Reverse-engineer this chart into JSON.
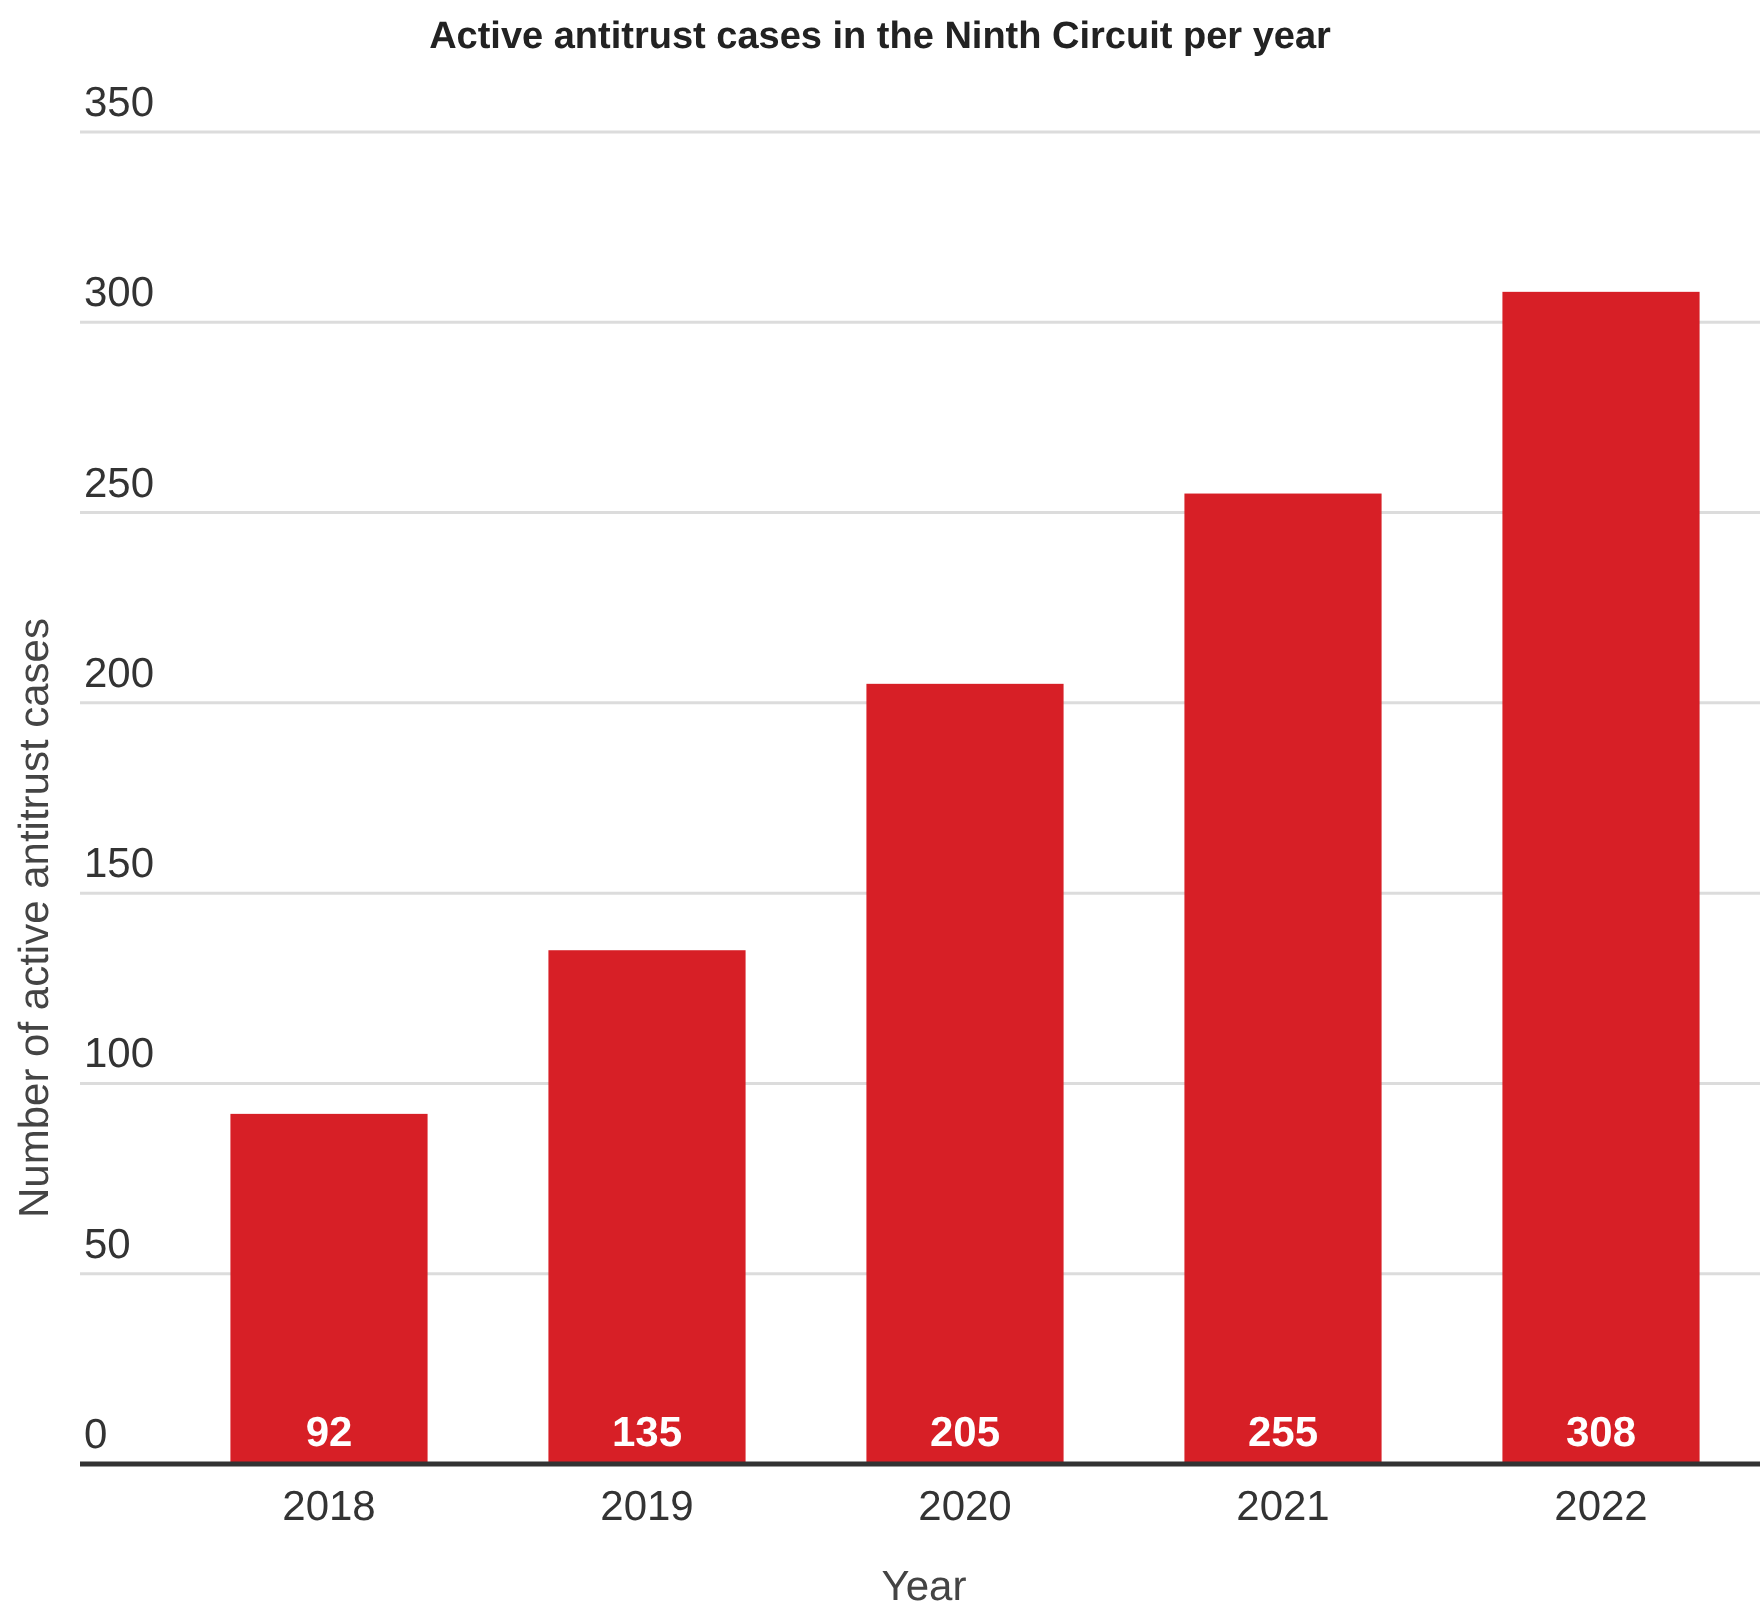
{
  "chart_data": {
    "type": "bar",
    "title": "Active antitrust cases in the Ninth Circuit per year",
    "xlabel": "Year",
    "ylabel": "Number of active antitrust cases",
    "categories": [
      "2018",
      "2019",
      "2020",
      "2021",
      "2022"
    ],
    "values": [
      92,
      135,
      205,
      255,
      308
    ],
    "color": "#d71f26",
    "ylim": [
      0,
      350
    ],
    "yticks": [
      0,
      50,
      100,
      150,
      200,
      250,
      300,
      350
    ],
    "grid": "y",
    "data_labels": true
  }
}
